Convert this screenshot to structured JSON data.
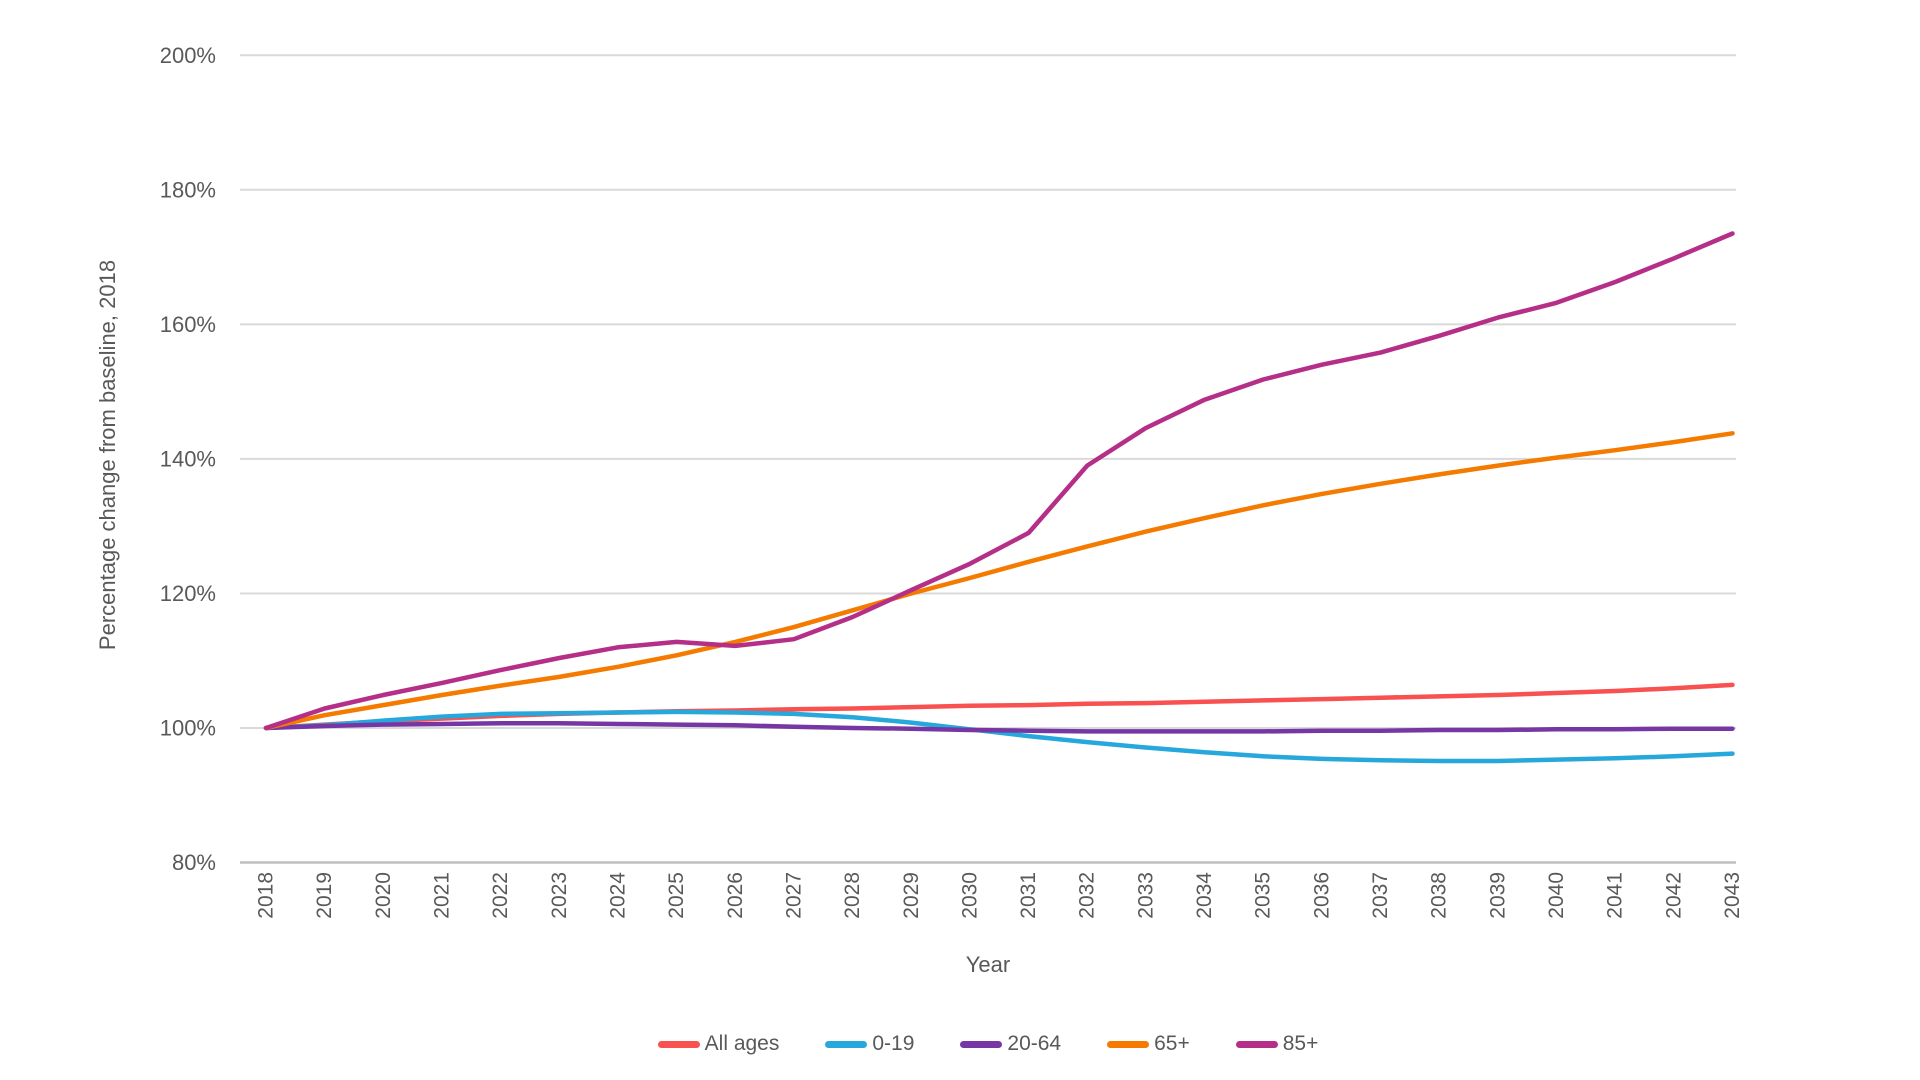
{
  "chart_data": {
    "type": "line",
    "title": "",
    "xlabel": "Year",
    "ylabel": "Percentage change from baseline, 2018",
    "x": [
      2018,
      2019,
      2020,
      2021,
      2022,
      2023,
      2024,
      2025,
      2026,
      2027,
      2028,
      2029,
      2030,
      2031,
      2032,
      2033,
      2034,
      2035,
      2036,
      2037,
      2038,
      2039,
      2040,
      2041,
      2042,
      2043
    ],
    "x_tick_labels": [
      "2018",
      "2019",
      "2020",
      "2021",
      "2022",
      "2023",
      "2024",
      "2025",
      "2026",
      "2027",
      "2028",
      "2029",
      "2030",
      "2031",
      "2032",
      "2033",
      "2034",
      "2035",
      "2036",
      "2037",
      "2038",
      "2039",
      "2040",
      "2041",
      "2042",
      "2043"
    ],
    "y_ticks": [
      80,
      100,
      120,
      140,
      160,
      180,
      200
    ],
    "y_tick_labels": [
      "80%",
      "100%",
      "120%",
      "140%",
      "160%",
      "180%",
      "200%"
    ],
    "ylim": [
      80,
      200
    ],
    "grid": "horizontal",
    "legend_position": "bottom",
    "series": [
      {
        "name": "All ages",
        "color": "#F8514F",
        "values": [
          100,
          100.5,
          101.0,
          101.4,
          101.8,
          102.1,
          102.3,
          102.5,
          102.6,
          102.8,
          102.9,
          103.1,
          103.3,
          103.4,
          103.6,
          103.7,
          103.9,
          104.1,
          104.3,
          104.5,
          104.7,
          104.9,
          105.2,
          105.5,
          105.9,
          106.4
        ]
      },
      {
        "name": "0-19",
        "color": "#27A8DC",
        "values": [
          100,
          100.4,
          101.1,
          101.7,
          102.1,
          102.2,
          102.3,
          102.4,
          102.3,
          102.1,
          101.6,
          100.8,
          99.8,
          98.8,
          97.9,
          97.1,
          96.4,
          95.8,
          95.4,
          95.2,
          95.1,
          95.1,
          95.3,
          95.5,
          95.8,
          96.2
        ]
      },
      {
        "name": "20-64",
        "color": "#7637A4",
        "values": [
          100,
          100.3,
          100.5,
          100.6,
          100.7,
          100.7,
          100.6,
          100.5,
          100.4,
          100.2,
          100.0,
          99.9,
          99.7,
          99.6,
          99.5,
          99.5,
          99.5,
          99.5,
          99.6,
          99.6,
          99.7,
          99.7,
          99.8,
          99.8,
          99.9,
          99.9
        ]
      },
      {
        "name": "65+",
        "color": "#F47B00",
        "values": [
          100,
          101.9,
          103.4,
          104.9,
          106.3,
          107.6,
          109.1,
          110.8,
          112.8,
          115.0,
          117.5,
          120.0,
          122.3,
          124.7,
          127.0,
          129.2,
          131.2,
          133.1,
          134.8,
          136.3,
          137.7,
          139.0,
          140.2,
          141.3,
          142.5,
          143.8
        ]
      },
      {
        "name": "85+",
        "color": "#B52E87",
        "values": [
          100,
          102.9,
          104.9,
          106.7,
          108.6,
          110.4,
          112.0,
          112.8,
          112.2,
          113.2,
          116.5,
          120.5,
          124.4,
          129.0,
          139.0,
          144.6,
          148.8,
          151.8,
          154.0,
          155.8,
          158.3,
          161.0,
          163.2,
          166.3,
          169.8,
          173.5
        ]
      }
    ]
  },
  "colors": {
    "background": "#ffffff",
    "gridline": "#D9D9D9",
    "axis_line": "#BFBFBF",
    "text": "#595959"
  }
}
